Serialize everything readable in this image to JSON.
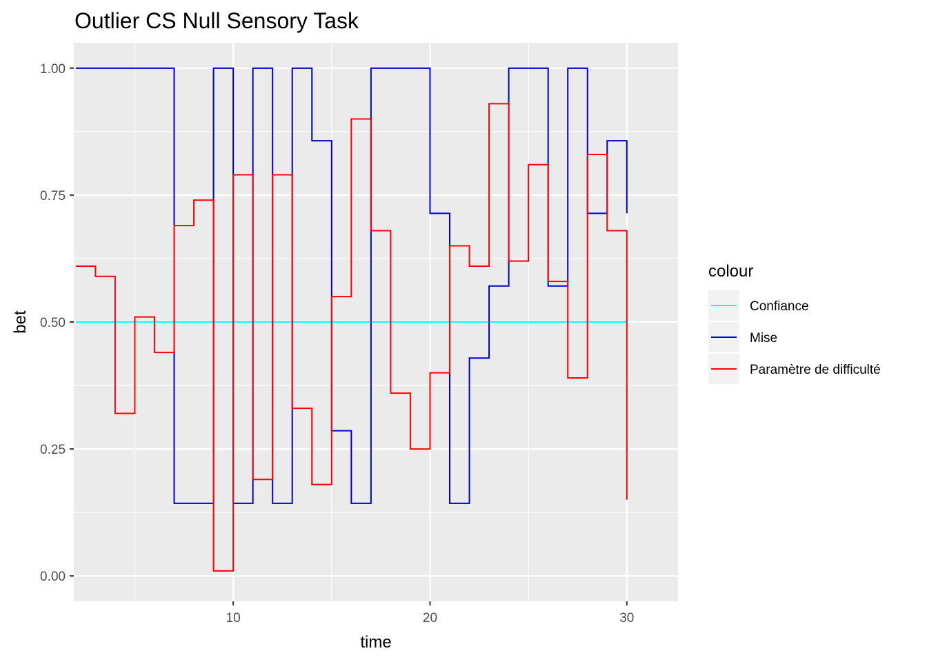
{
  "chart_data": {
    "type": "line",
    "step": "hv",
    "title": "Outlier CS Null Sensory Task",
    "xlabel": "time",
    "ylabel": "bet",
    "xlim": [
      1.9,
      32.6
    ],
    "ylim": [
      -0.05,
      1.05
    ],
    "x_ticks": [
      10,
      20,
      30
    ],
    "x_tick_labels": [
      "10",
      "20",
      "30"
    ],
    "y_ticks": [
      0,
      0.25,
      0.5,
      0.75,
      1
    ],
    "y_tick_labels": [
      "0.00",
      "0.25",
      "0.50",
      "0.75",
      "1.00"
    ],
    "grid": true,
    "panel_background": "#ebebeb",
    "legend": {
      "title": "colour",
      "position": "right",
      "entries": [
        {
          "label": "Confiance",
          "color": "#00ffff"
        },
        {
          "label": "Mise",
          "color": "#0000cc"
        },
        {
          "label": "Paramètre de difficulté",
          "color": "#ff0000"
        }
      ]
    },
    "x": [
      2,
      3,
      4,
      5,
      6,
      7,
      8,
      9,
      10,
      11,
      12,
      13,
      14,
      15,
      16,
      17,
      18,
      19,
      20,
      21,
      22,
      23,
      24,
      25,
      26,
      27,
      28,
      29,
      30
    ],
    "series": [
      {
        "name": "Confiance",
        "color": "#00ffff",
        "values": [
          0.5,
          0.5,
          0.5,
          0.5,
          0.5,
          0.5,
          0.5,
          0.5,
          0.5,
          0.5,
          0.5,
          0.5,
          0.5,
          0.5,
          0.5,
          0.5,
          0.5,
          0.5,
          0.5,
          0.5,
          0.5,
          0.5,
          0.5,
          0.5,
          0.5,
          0.5,
          0.5,
          0.5,
          0.5
        ]
      },
      {
        "name": "Mise",
        "color": "#0000cc",
        "values": [
          1.0,
          1.0,
          1.0,
          1.0,
          1.0,
          0.143,
          0.143,
          1.0,
          0.143,
          1.0,
          0.143,
          1.0,
          0.857,
          0.286,
          0.143,
          1.0,
          1.0,
          1.0,
          0.714,
          0.143,
          0.429,
          0.571,
          1.0,
          1.0,
          0.571,
          1.0,
          0.714,
          0.857,
          0.714
        ]
      },
      {
        "name": "Paramètre de difficulté",
        "color": "#ff0000",
        "values": [
          0.61,
          0.59,
          0.32,
          0.51,
          0.44,
          0.69,
          0.74,
          0.01,
          0.79,
          0.19,
          0.79,
          0.33,
          0.18,
          0.55,
          0.9,
          0.68,
          0.36,
          0.25,
          0.4,
          0.65,
          0.61,
          0.93,
          0.62,
          0.81,
          0.58,
          0.39,
          0.83,
          0.68,
          0.15
        ]
      }
    ]
  }
}
